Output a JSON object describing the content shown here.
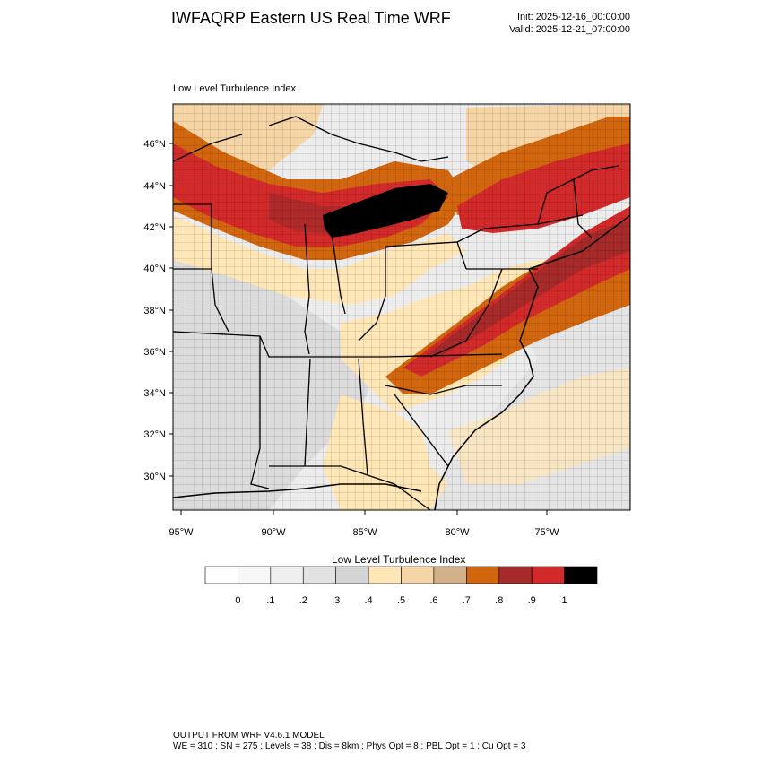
{
  "header": {
    "title": "IWFAQRP Eastern US Real Time WRF",
    "init": "Init: 2025-12-16_00:00:00",
    "valid": "Valid: 2025-12-21_07:00:00"
  },
  "map": {
    "field_label": "Low Level Turbulence Index",
    "lat_labels": [
      "46°N",
      "44°N",
      "42°N",
      "40°N",
      "38°N",
      "36°N",
      "34°N",
      "32°N",
      "30°N"
    ],
    "lon_labels": [
      "95°W",
      "90°W",
      "85°W",
      "80°W",
      "75°W"
    ]
  },
  "colorbar": {
    "title": "Low Level Turbulence Index",
    "colors": [
      "#ffffff",
      "#f7f7f7",
      "#efefef",
      "#e2e2e2",
      "#d4d4d4",
      "#ffe6b6",
      "#f5d4a5",
      "#d2b08a",
      "#d2660f",
      "#a62a2a",
      "#d22a2a",
      "#000000"
    ],
    "labels": [
      "0",
      ".1",
      ".2",
      ".3",
      ".4",
      ".5",
      ".6",
      ".7",
      ".8",
      ".9",
      "1"
    ]
  },
  "footer": {
    "line1": "OUTPUT FROM WRF V4.6.1 MODEL",
    "line2": "WE = 310 ; SN = 275 ; Levels = 38 ; Dis = 8km ; Phys Opt = 8 ; PBL Opt = 1 ; Cu Opt = 3"
  }
}
